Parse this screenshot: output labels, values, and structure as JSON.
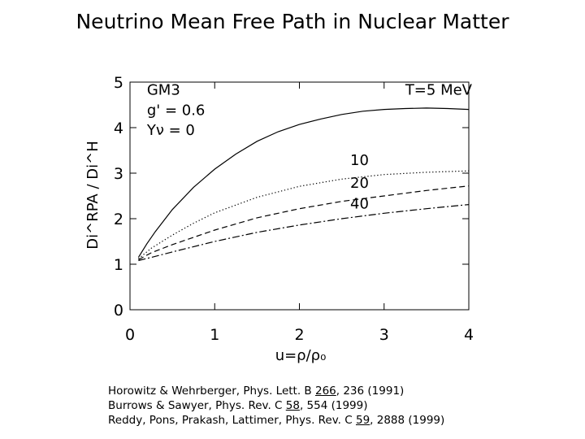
{
  "slide": {
    "title": "Neutrino Mean Free Path in Nuclear Matter"
  },
  "chart_data": {
    "type": "line",
    "title": "",
    "xlabel": "u=ρ/ρ₀",
    "ylabel": "Di^RPA / Di^H",
    "xlim": [
      0,
      4
    ],
    "ylim": [
      0,
      5
    ],
    "x_ticks": [
      "0",
      "1",
      "2",
      "3",
      "4"
    ],
    "y_ticks": [
      "0",
      "1",
      "2",
      "3",
      "4",
      "5"
    ],
    "grid": false,
    "annotations": [
      "GM3",
      "g' = 0.6",
      "Yν = 0"
    ],
    "series": [
      {
        "name": "T=5 MeV",
        "style": "solid",
        "x": [
          0.1,
          0.2,
          0.3,
          0.5,
          0.75,
          1.0,
          1.25,
          1.5,
          1.75,
          2.0,
          2.25,
          2.5,
          2.75,
          3.0,
          3.25,
          3.5,
          3.75,
          4.0
        ],
        "y": [
          1.15,
          1.45,
          1.72,
          2.2,
          2.69,
          3.09,
          3.42,
          3.7,
          3.91,
          4.07,
          4.19,
          4.29,
          4.36,
          4.4,
          4.42,
          4.43,
          4.42,
          4.4
        ]
      },
      {
        "name": "10",
        "style": "dotted",
        "x": [
          0.1,
          0.25,
          0.5,
          0.75,
          1.0,
          1.5,
          2.0,
          2.5,
          3.0,
          3.5,
          4.0
        ],
        "y": [
          1.12,
          1.35,
          1.64,
          1.9,
          2.13,
          2.47,
          2.71,
          2.87,
          2.97,
          3.02,
          3.05
        ]
      },
      {
        "name": "20",
        "style": "dashed",
        "x": [
          0.1,
          0.25,
          0.5,
          1.0,
          1.5,
          2.0,
          2.5,
          3.0,
          3.5,
          4.0
        ],
        "y": [
          1.1,
          1.25,
          1.43,
          1.75,
          2.02,
          2.22,
          2.38,
          2.5,
          2.62,
          2.72
        ]
      },
      {
        "name": "40",
        "style": "dashdot",
        "x": [
          0.1,
          0.25,
          0.5,
          1.0,
          1.5,
          2.0,
          2.5,
          3.0,
          3.5,
          4.0
        ],
        "y": [
          1.08,
          1.15,
          1.27,
          1.5,
          1.7,
          1.86,
          2.0,
          2.12,
          2.22,
          2.31
        ]
      }
    ]
  },
  "references": [
    {
      "before": "Horowitz & Wehrberger, Phys. Lett. B ",
      "volume": "266",
      "after": ", 236 (1991)"
    },
    {
      "before": "Burrows & Sawyer, Phys. Rev. C ",
      "volume": "58",
      "after": ", 554 (1999)"
    },
    {
      "before": "Reddy, Pons, Prakash, Lattimer, Phys. Rev. C ",
      "volume": "59",
      "after": ", 2888 (1999)"
    }
  ]
}
